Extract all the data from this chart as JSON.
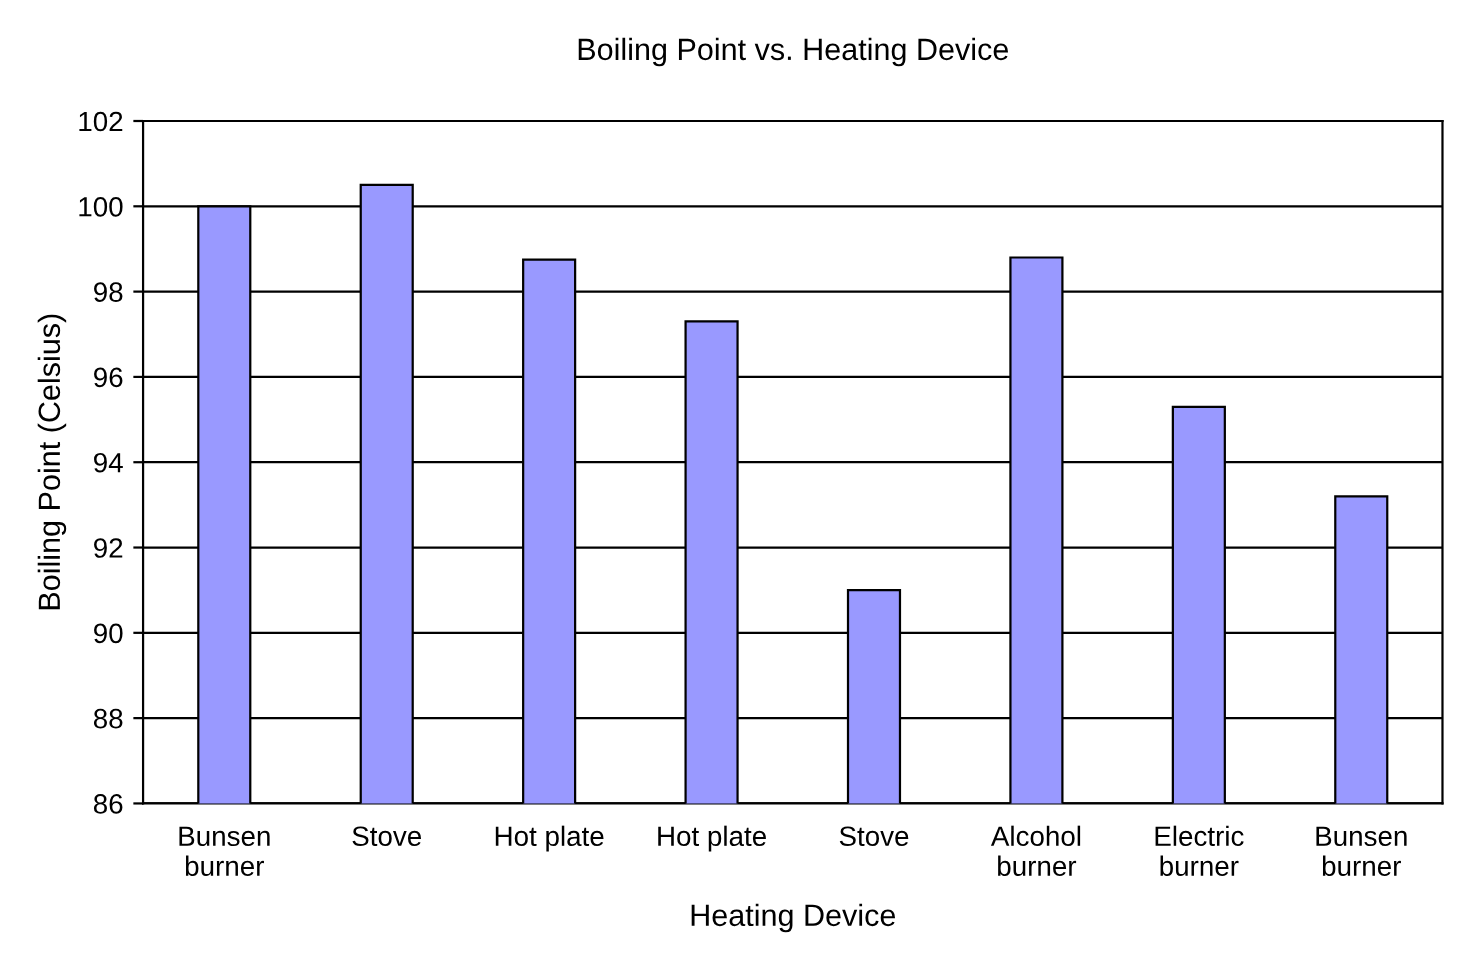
{
  "chart_data": {
    "type": "bar",
    "title": "Boiling Point vs. Heating Device",
    "xlabel": "Heating Device",
    "ylabel": "Boiling Point (Celsius)",
    "categories": [
      "Bunsen\nburner",
      "Stove",
      "Hot plate",
      "Hot plate",
      "Stove",
      "Alcohol\nburner",
      "Electric\nburner",
      "Bunsen\nburner"
    ],
    "values": [
      100.0,
      100.5,
      98.75,
      97.3,
      91.0,
      98.8,
      95.3,
      93.2
    ],
    "color": "#9999ff",
    "ylim": [
      86,
      102
    ],
    "yticks": [
      86,
      88,
      90,
      92,
      94,
      96,
      98,
      100,
      102
    ],
    "grid": "y",
    "legend": false
  }
}
